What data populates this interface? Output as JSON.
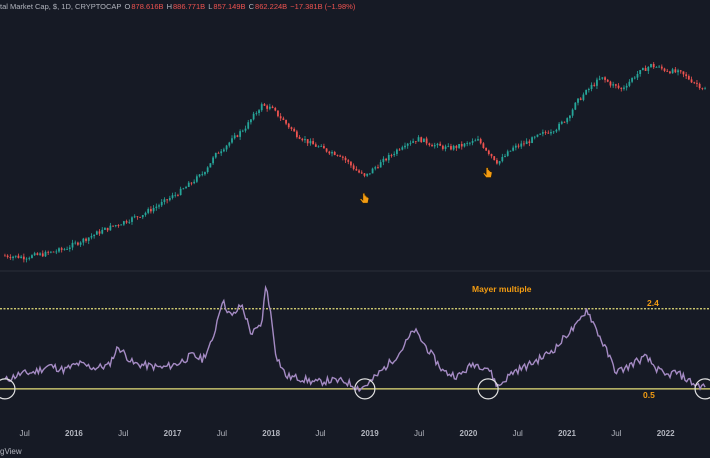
{
  "header": {
    "symbol": "tal Market Cap, $, 1D, CRYPTOCAP",
    "open_label": "O",
    "open_value": "878.616B",
    "high_label": "H",
    "high_value": "886.771B",
    "low_label": "L",
    "low_value": "857.149B",
    "close_label": "C",
    "close_value": "862.224B",
    "change": "−17.381B (−1.98%)"
  },
  "colors": {
    "background": "#161a25",
    "up_candle": "#26a69a",
    "down_candle": "#ef5350",
    "mayer_line": "#a58bc4",
    "threshold_line": "#e6e07a",
    "annotation_text": "#f39c12",
    "circle": "#e0e0e0"
  },
  "icons": {
    "cursor": "hand-pointer-icon"
  },
  "brand": "gView",
  "chart_data": [
    {
      "type": "line",
      "title": "tal Market Cap, $, 1D, CRYPTOCAP",
      "x": [
        2015.3,
        2015.5,
        2015.7,
        2015.9,
        2016.1,
        2016.3,
        2016.5,
        2016.7,
        2016.9,
        2017.1,
        2017.3,
        2017.45,
        2017.6,
        2017.75,
        2017.9,
        2018.0,
        2018.1,
        2018.25,
        2018.4,
        2018.55,
        2018.7,
        2018.85,
        2018.95,
        2019.05,
        2019.2,
        2019.35,
        2019.5,
        2019.65,
        2019.8,
        2019.95,
        2020.1,
        2020.2,
        2020.3,
        2020.45,
        2020.6,
        2020.75,
        2020.9,
        2021.0,
        2021.1,
        2021.25,
        2021.35,
        2021.45,
        2021.55,
        2021.7,
        2021.85,
        2022.0,
        2022.15,
        2022.3,
        2022.4
      ],
      "y_log_level": [
        0.04,
        0.03,
        0.05,
        0.08,
        0.14,
        0.2,
        0.25,
        0.3,
        0.37,
        0.45,
        0.55,
        0.68,
        0.76,
        0.85,
        0.98,
        0.96,
        0.9,
        0.8,
        0.74,
        0.7,
        0.67,
        0.58,
        0.53,
        0.59,
        0.66,
        0.74,
        0.77,
        0.73,
        0.71,
        0.73,
        0.76,
        0.69,
        0.62,
        0.71,
        0.75,
        0.8,
        0.84,
        0.9,
        1.0,
        1.1,
        1.15,
        1.11,
        1.08,
        1.17,
        1.23,
        1.2,
        1.18,
        1.12,
        1.08
      ],
      "annotations": [
        "hand-pointer-icon",
        "hand-pointer-icon"
      ],
      "xlabel": "",
      "ylabel": "",
      "grid": false
    },
    {
      "type": "line",
      "title": "",
      "x": [
        2015.3,
        2015.45,
        2015.6,
        2015.75,
        2015.9,
        2016.05,
        2016.2,
        2016.35,
        2016.45,
        2016.6,
        2016.75,
        2016.9,
        2017.05,
        2017.2,
        2017.3,
        2017.4,
        2017.5,
        2017.6,
        2017.7,
        2017.8,
        2017.9,
        2017.95,
        2018.0,
        2018.05,
        2018.15,
        2018.3,
        2018.45,
        2018.6,
        2018.75,
        2018.9,
        2019.0,
        2019.15,
        2019.3,
        2019.45,
        2019.6,
        2019.75,
        2019.9,
        2020.05,
        2020.2,
        2020.3,
        2020.45,
        2020.6,
        2020.75,
        2020.9,
        2021.0,
        2021.1,
        2021.2,
        2021.3,
        2021.4,
        2021.5,
        2021.6,
        2021.7,
        2021.8,
        2021.9,
        2022.0,
        2022.1,
        2022.2,
        2022.3,
        2022.4
      ],
      "y": [
        0.7,
        0.85,
        0.9,
        1.05,
        0.95,
        1.1,
        1.0,
        1.05,
        1.5,
        1.1,
        1.05,
        1.0,
        1.1,
        1.3,
        1.2,
        1.6,
        2.6,
        2.2,
        2.5,
        1.8,
        2.0,
        3.0,
        2.2,
        1.3,
        0.8,
        0.75,
        0.65,
        0.7,
        0.68,
        0.5,
        0.65,
        1.0,
        1.35,
        1.9,
        1.4,
        0.9,
        0.8,
        1.1,
        1.0,
        0.55,
        0.9,
        1.05,
        1.25,
        1.5,
        1.8,
        2.0,
        2.4,
        1.9,
        1.4,
        0.9,
        1.0,
        1.15,
        1.25,
        1.0,
        0.8,
        0.9,
        0.75,
        0.6,
        0.55
      ],
      "xlabel": "",
      "ylabel": "",
      "annotations": [
        {
          "text": "Mayer multiple"
        },
        {
          "text": "2.4",
          "value": 2.4
        },
        {
          "text": "0.5",
          "value": 0.5
        }
      ],
      "grid": false
    }
  ],
  "axis": {
    "ticks": [
      {
        "label": "Jul",
        "year": false,
        "x": 2015.5
      },
      {
        "label": "2016",
        "year": true,
        "x": 2016.0
      },
      {
        "label": "Jul",
        "year": false,
        "x": 2016.5
      },
      {
        "label": "2017",
        "year": true,
        "x": 2017.0
      },
      {
        "label": "Jul",
        "year": false,
        "x": 2017.5
      },
      {
        "label": "2018",
        "year": true,
        "x": 2018.0
      },
      {
        "label": "Jul",
        "year": false,
        "x": 2018.5
      },
      {
        "label": "2019",
        "year": true,
        "x": 2019.0
      },
      {
        "label": "Jul",
        "year": false,
        "x": 2019.5
      },
      {
        "label": "2020",
        "year": true,
        "x": 2020.0
      },
      {
        "label": "Jul",
        "year": false,
        "x": 2020.5
      },
      {
        "label": "2021",
        "year": true,
        "x": 2021.0
      },
      {
        "label": "Jul",
        "year": false,
        "x": 2021.5
      },
      {
        "label": "2022",
        "year": true,
        "x": 2022.0
      },
      {
        "label": "Ju",
        "year": false,
        "x": 2022.5
      }
    ]
  },
  "circles": [
    {
      "x": 2015.3,
      "y": 0.5
    },
    {
      "x": 2018.95,
      "y": 0.5
    },
    {
      "x": 2020.2,
      "y": 0.5
    },
    {
      "x": 2022.4,
      "y": 0.5
    }
  ]
}
